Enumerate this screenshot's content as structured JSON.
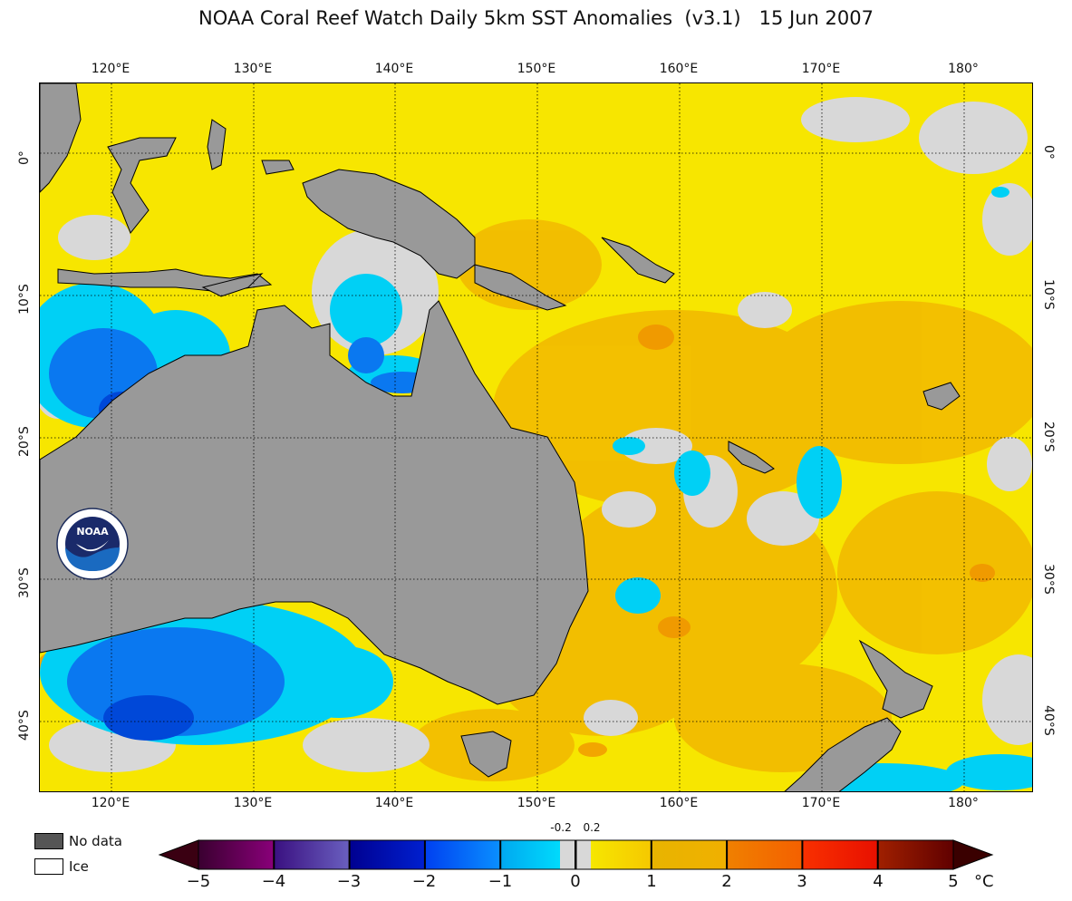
{
  "title": "NOAA Coral Reef Watch Daily 5km SST Anomalies  (v3.1)   15 Jun 2007",
  "map": {
    "lon_ticks": [
      "120°E",
      "130°E",
      "140°E",
      "150°E",
      "160°E",
      "170°E",
      "180°"
    ],
    "lat_ticks": [
      "0°",
      "10°S",
      "20°S",
      "30°S",
      "40°S"
    ],
    "lon_range": [
      115,
      185
    ],
    "lat_range": [
      5,
      -45
    ],
    "colors": {
      "land": "#999999",
      "no_data_ocean": "#d8d8d8",
      "warm_yellow": "#f7e600",
      "warm_orange": "#f2b800",
      "cool_cyan": "#00d0f5",
      "cool_blue": "#0a78f0",
      "deep_blue": "#0040d0"
    }
  },
  "legend": {
    "no_data_label": "No data",
    "no_data_color": "#555555",
    "ice_label": "Ice",
    "ice_color": "#ffffff"
  },
  "colorbar": {
    "labels": [
      "−5",
      "−4",
      "−3",
      "−2",
      "−1",
      "0",
      "1",
      "2",
      "3",
      "4",
      "5"
    ],
    "small_labels": [
      "-0.2",
      "0.2"
    ],
    "unit": "°C",
    "segments": [
      {
        "from": "#3a0030",
        "to": "#8a007a"
      },
      {
        "from": "#3a1080",
        "to": "#6a60c0"
      },
      {
        "from": "#000090",
        "to": "#0020d0"
      },
      {
        "from": "#0040f0",
        "to": "#0a90ff"
      },
      {
        "from": "#00a8f0",
        "to": "#00e8ff"
      },
      {
        "from": "#f7ee00",
        "to": "#f5c800"
      },
      {
        "from": "#e8b400",
        "to": "#f0b000"
      },
      {
        "from": "#f08000",
        "to": "#f46000"
      },
      {
        "from": "#f83000",
        "to": "#e81000"
      },
      {
        "from": "#a02000",
        "to": "#600000"
      }
    ]
  },
  "logo": {
    "text": "NOAA"
  }
}
